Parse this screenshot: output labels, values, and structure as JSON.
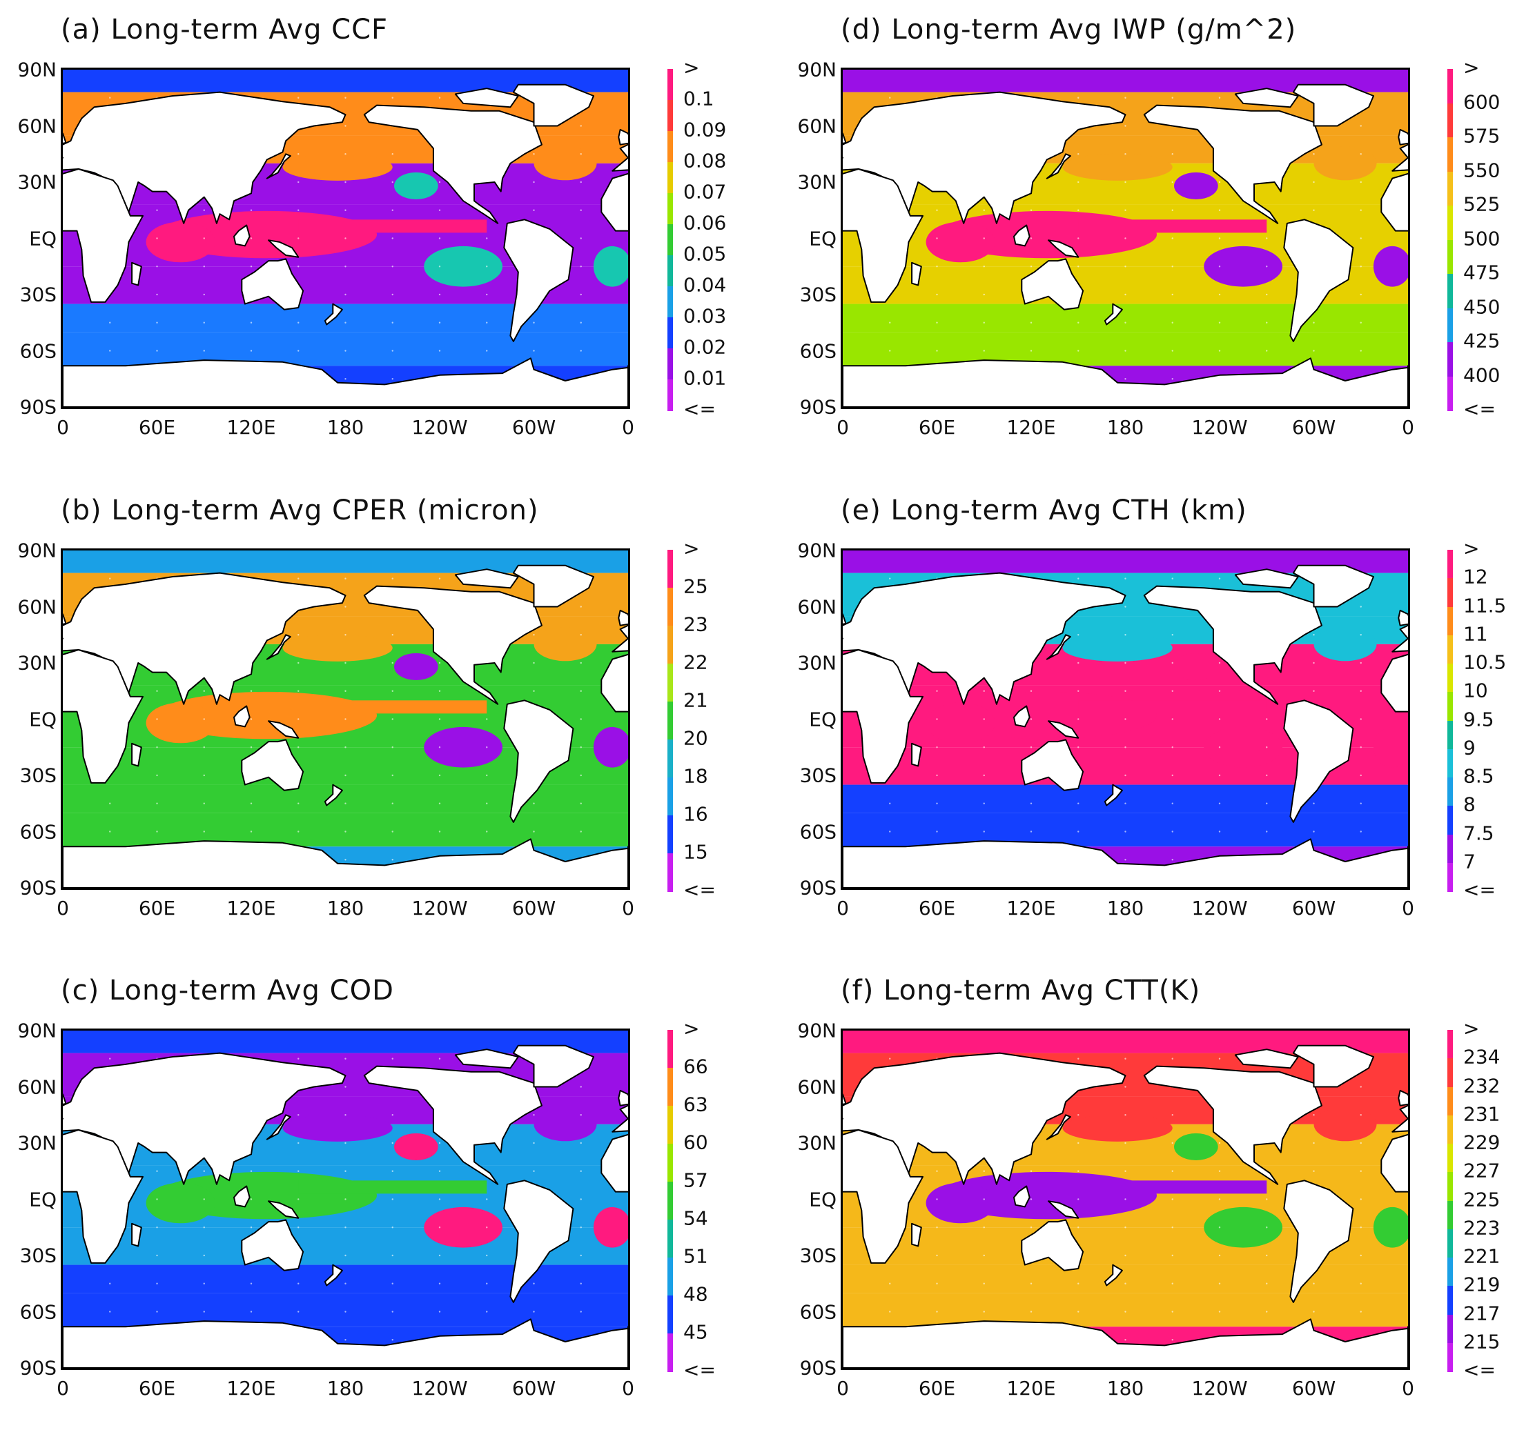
{
  "chart_data": [
    {
      "type": "heatmap",
      "panel": "a",
      "title": "(a) Long-term Avg CCF",
      "ylabels": [
        "90N",
        "60N",
        "30N",
        "EQ",
        "30S",
        "60S",
        "90S"
      ],
      "xlabels": [
        "0",
        "60E",
        "120E",
        "180",
        "120W",
        "60W",
        "0"
      ],
      "colorbar_labels": [
        ">",
        "0.1",
        "0.09",
        "0.08",
        "0.07",
        "0.06",
        "0.05",
        "0.04",
        "0.03",
        "0.02",
        "0.01",
        "<="
      ],
      "colorbar_colors": [
        "#ff1a7f",
        "#ff3a3a",
        "#ff8c1a",
        "#e6cc00",
        "#99e600",
        "#33cc33",
        "#10b89a",
        "#1aa0e6",
        "#1440ff",
        "#9a10e6",
        "#c81ef0"
      ],
      "fields": {
        "base": "#9a10e6",
        "band60S": "#1a7aff",
        "tropics": "#ff1a7f",
        "midlat": "#ff8c1a",
        "subtrop": "#17c7b0",
        "polar": "#1440ff"
      }
    },
    {
      "type": "heatmap",
      "panel": "b",
      "title": "(b) Long-term Avg CPER (micron)",
      "ylabels": [
        "90N",
        "60N",
        "30N",
        "EQ",
        "30S",
        "60S",
        "90S"
      ],
      "xlabels": [
        "0",
        "60E",
        "120E",
        "180",
        "120W",
        "60W",
        "0"
      ],
      "colorbar_labels": [
        ">",
        "25",
        "23",
        "22",
        "21",
        "20",
        "18",
        "16",
        "15",
        "<="
      ],
      "colorbar_colors": [
        "#ff1a7f",
        "#ff8c1a",
        "#f5a31a",
        "#a8e61a",
        "#33cc33",
        "#1ab0c8",
        "#1aa0e6",
        "#1440ff",
        "#c81ef0"
      ],
      "fields": {
        "base": "#33cc33",
        "band60S": "#33cc33",
        "tropics": "#ff8c1a",
        "midlat": "#f5a31a",
        "subtrop": "#9a10e6",
        "polar": "#1aa0e6"
      }
    },
    {
      "type": "heatmap",
      "panel": "c",
      "title": "(c) Long-term Avg COD",
      "ylabels": [
        "90N",
        "60N",
        "30N",
        "EQ",
        "30S",
        "60S",
        "90S"
      ],
      "xlabels": [
        "0",
        "60E",
        "120E",
        "180",
        "120W",
        "60W",
        "0"
      ],
      "colorbar_labels": [
        ">",
        "66",
        "63",
        "60",
        "57",
        "54",
        "51",
        "48",
        "45",
        "<="
      ],
      "colorbar_colors": [
        "#ff1a7f",
        "#ff8c1a",
        "#e6cc00",
        "#99e600",
        "#33cc33",
        "#10b89a",
        "#1aa0e6",
        "#1440ff",
        "#c81ef0"
      ],
      "fields": {
        "base": "#1aa0e6",
        "band60S": "#1440ff",
        "tropics": "#33cc33",
        "midlat": "#9a10e6",
        "subtrop": "#ff1a7f",
        "polar": "#1440ff"
      }
    },
    {
      "type": "heatmap",
      "panel": "d",
      "title": "(d) Long-term Avg IWP (g/m^2)",
      "ylabels": [
        "90N",
        "60N",
        "30N",
        "EQ",
        "30S",
        "60S",
        "90S"
      ],
      "xlabels": [
        "0",
        "60E",
        "120E",
        "180",
        "120W",
        "60W",
        "0"
      ],
      "colorbar_labels": [
        ">",
        "600",
        "575",
        "550",
        "525",
        "500",
        "475",
        "450",
        "425",
        "400",
        "<="
      ],
      "colorbar_colors": [
        "#ff1a7f",
        "#ff3a3a",
        "#ff8c1a",
        "#f5c01a",
        "#d9e600",
        "#99e600",
        "#10b89a",
        "#1aa0e6",
        "#9a10e6",
        "#c81ef0"
      ],
      "fields": {
        "base": "#e6d000",
        "band60S": "#99e600",
        "tropics": "#ff1a7f",
        "midlat": "#f5a31a",
        "subtrop": "#9a10e6",
        "polar": "#9a10e6"
      }
    },
    {
      "type": "heatmap",
      "panel": "e",
      "title": "(e) Long-term Avg CTH (km)",
      "ylabels": [
        "90N",
        "60N",
        "30N",
        "EQ",
        "30S",
        "60S",
        "90S"
      ],
      "xlabels": [
        "0",
        "60E",
        "120E",
        "180",
        "120W",
        "60W",
        "0"
      ],
      "colorbar_labels": [
        ">",
        "12",
        "11.5",
        "11",
        "10.5",
        "10",
        "9.5",
        "9",
        "8.5",
        "8",
        "7.5",
        "7",
        "<="
      ],
      "colorbar_colors": [
        "#ff1a7f",
        "#ff3a3a",
        "#ff8c1a",
        "#f5c01a",
        "#d9e600",
        "#99e600",
        "#10b89a",
        "#1ac0d8",
        "#1aa0e6",
        "#1440ff",
        "#9a10e6",
        "#c81ef0"
      ],
      "fields": {
        "base": "#ff1a7f",
        "band60S": "#1440ff",
        "tropics": "#ff1a7f",
        "midlat": "#1ac0d8",
        "subtrop": "#ff1a7f",
        "polar": "#9a10e6"
      }
    },
    {
      "type": "heatmap",
      "panel": "f",
      "title": "(f) Long-term Avg CTT(K)",
      "ylabels": [
        "90N",
        "60N",
        "30N",
        "EQ",
        "30S",
        "60S",
        "90S"
      ],
      "xlabels": [
        "0",
        "60E",
        "120E",
        "180",
        "120W",
        "60W",
        "0"
      ],
      "colorbar_labels": [
        ">",
        "234",
        "232",
        "231",
        "229",
        "227",
        "225",
        "223",
        "221",
        "219",
        "217",
        "215",
        "<="
      ],
      "colorbar_colors": [
        "#ff1a7f",
        "#ff3a3a",
        "#ff8c1a",
        "#f5c01a",
        "#d9e600",
        "#99e600",
        "#33cc33",
        "#10b89a",
        "#1aa0e6",
        "#1440ff",
        "#9a10e6",
        "#c81ef0"
      ],
      "fields": {
        "base": "#f5b81a",
        "band60S": "#f5b81a",
        "tropics": "#9a10e6",
        "midlat": "#ff3a3a",
        "subtrop": "#33cc33",
        "polar": "#ff1a7f"
      }
    }
  ]
}
